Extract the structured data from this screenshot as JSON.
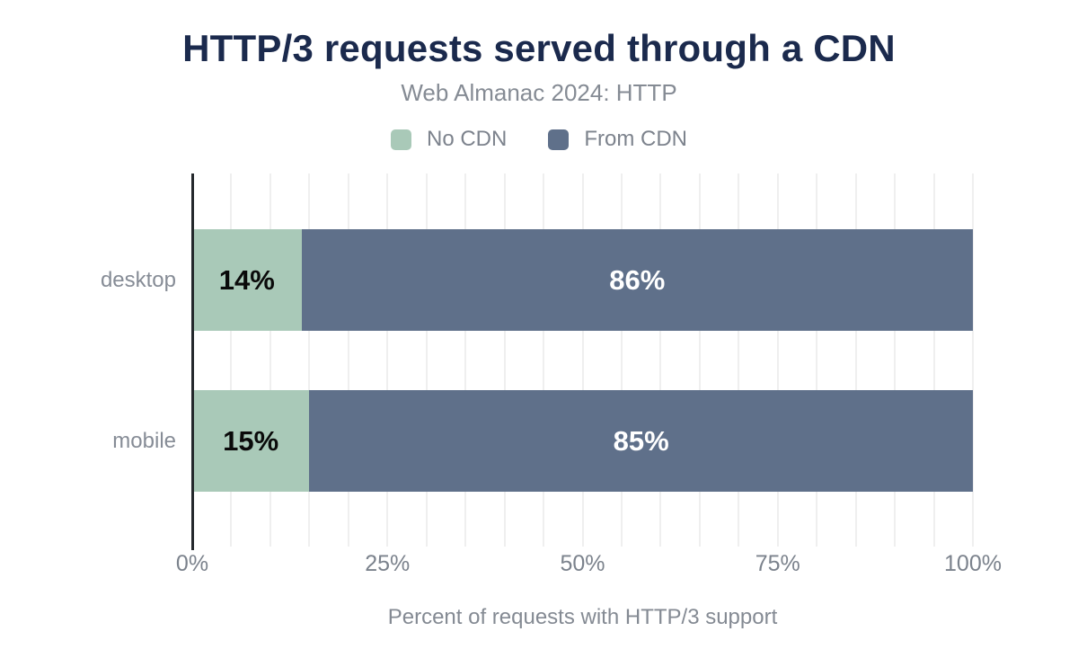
{
  "title": "HTTP/3 requests served through a CDN",
  "subtitle": "Web Almanac 2024: HTTP",
  "colors": {
    "title": "#1b2a4d",
    "no_cdn_green": "#a9c9b8",
    "from_cdn_blue": "#5f708a",
    "axis_line": "#24282c",
    "gridline": "#efefef",
    "muted_text": "#7d838d"
  },
  "legend": {
    "items": [
      {
        "label": "No CDN",
        "color": "#a9c9b8"
      },
      {
        "label": "From CDN",
        "color": "#5f708a"
      }
    ]
  },
  "chart_data": {
    "type": "bar",
    "orientation": "horizontal",
    "stacked": true,
    "title": "HTTP/3 requests served through a CDN",
    "subtitle": "Web Almanac 2024: HTTP",
    "xlabel": "Percent of requests with HTTP/3 support",
    "ylabel": "",
    "categories": [
      "desktop",
      "mobile"
    ],
    "series": [
      {
        "name": "No CDN",
        "color": "#a9c9b8",
        "values": [
          14,
          15
        ]
      },
      {
        "name": "From CDN",
        "color": "#5f708a",
        "values": [
          86,
          85
        ]
      }
    ],
    "rows": [
      {
        "category": "desktop",
        "segments": [
          {
            "series": "No CDN",
            "value": 14,
            "label": "14%",
            "width": "14%"
          },
          {
            "series": "From CDN",
            "value": 86,
            "label": "86%",
            "width": "86%"
          }
        ]
      },
      {
        "category": "mobile",
        "segments": [
          {
            "series": "No CDN",
            "value": 15,
            "label": "15%",
            "width": "15%"
          },
          {
            "series": "From CDN",
            "value": 85,
            "label": "85%",
            "width": "85%"
          }
        ]
      }
    ],
    "xlim": [
      0,
      100
    ],
    "xticks": [
      "0%",
      "25%",
      "50%",
      "75%",
      "100%"
    ],
    "grid_step_percent": 5,
    "grid": true,
    "legend_position": "top"
  }
}
